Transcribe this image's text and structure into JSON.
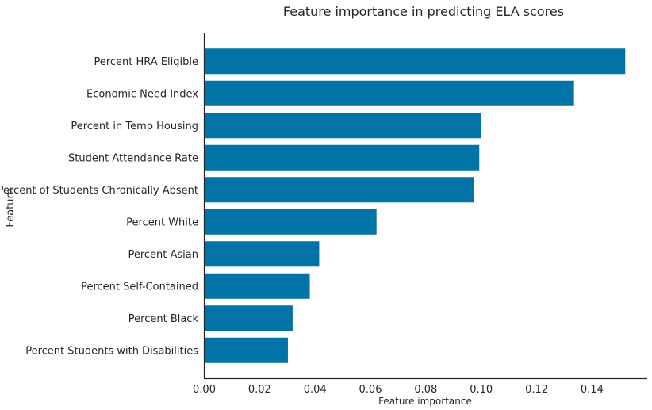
{
  "chart_data": {
    "type": "bar",
    "orientation": "horizontal",
    "title": "Feature importance in predicting ELA scores",
    "xlabel": "Feature importance",
    "ylabel": "Feature",
    "categories": [
      "Percent HRA Eligible",
      "Economic Need Index",
      "Percent in Temp Housing",
      "Student Attendance Rate",
      "Percent of Students Chronically Absent",
      "Percent White",
      "Percent Asian",
      "Percent Self-Contained",
      "Percent Black",
      "Percent Students with Disabilities"
    ],
    "values": [
      0.152,
      0.1335,
      0.1,
      0.0993,
      0.0975,
      0.0622,
      0.0415,
      0.0381,
      0.0319,
      0.0302
    ],
    "xlim": [
      0,
      0.16
    ],
    "xticks": [
      0,
      0.02,
      0.04,
      0.06,
      0.08,
      0.1,
      0.12,
      0.14
    ],
    "xtick_labels": [
      "0.00",
      "0.02",
      "0.04",
      "0.06",
      "0.08",
      "0.10",
      "0.12",
      "0.14"
    ],
    "grid": false,
    "legend": "none",
    "bar_color": "#0173a6"
  }
}
